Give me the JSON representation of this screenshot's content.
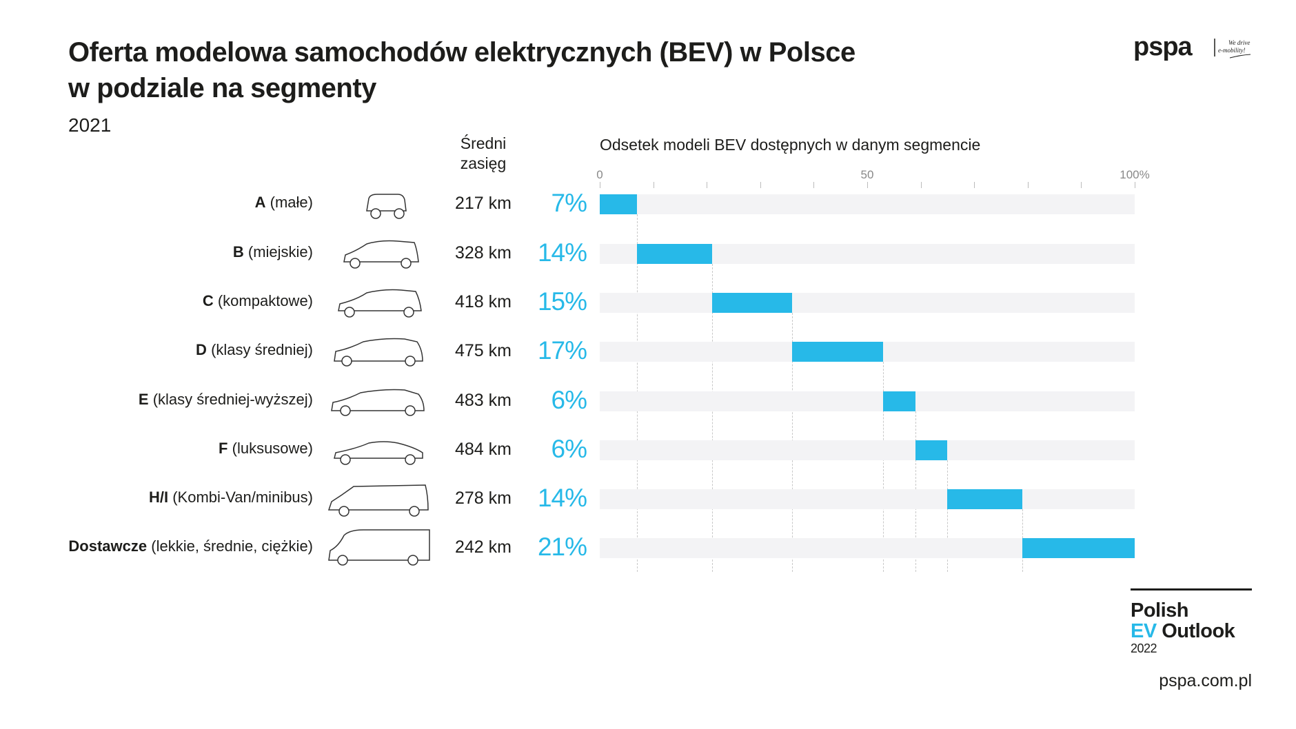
{
  "header": {
    "title_line1": "Oferta modelowa samochodów elektrycznych (BEV) w Polsce",
    "title_line2": "w podziale na segmenty",
    "year": "2021",
    "logo_text": "pspa",
    "logo_tagline": "We drive e-mobility!"
  },
  "columns": {
    "range_header_line1": "Średni",
    "range_header_line2": "zasięg"
  },
  "footer": {
    "brand_line1": "Polish",
    "brand_ev": "EV",
    "brand_outlook": "Outlook",
    "brand_year": "2022",
    "website": "pspa.com.pl"
  },
  "colors": {
    "accent": "#27b9e8",
    "track": "#f3f3f5",
    "text": "#1d1d1b"
  },
  "chart_data": {
    "type": "bar",
    "subtype": "stacked-cumulative-horizontal",
    "title": "Odsetek modeli BEV dostępnych w danym segmencie",
    "xlim": [
      0,
      100
    ],
    "tick_labels": [
      {
        "value": 0,
        "label": "0"
      },
      {
        "value": 50,
        "label": "50"
      },
      {
        "value": 100,
        "label": "100%"
      }
    ],
    "tick_marks": [
      0,
      10,
      20,
      30,
      40,
      50,
      60,
      70,
      80,
      90,
      100
    ],
    "categories": [
      {
        "segment": "A",
        "desc": "(małe)",
        "icon": "city-car-icon",
        "range": "217 km",
        "value": 7,
        "label": "7%"
      },
      {
        "segment": "B",
        "desc": "(miejskie)",
        "icon": "hatchback-small-icon",
        "range": "328 km",
        "value": 14,
        "label": "14%"
      },
      {
        "segment": "C",
        "desc": "(kompaktowe)",
        "icon": "hatchback-compact-icon",
        "range": "418 km",
        "value": 15,
        "label": "15%"
      },
      {
        "segment": "D",
        "desc": "(klasy średniej)",
        "icon": "suv-icon",
        "range": "475 km",
        "value": 17,
        "label": "17%"
      },
      {
        "segment": "E",
        "desc": "(klasy średniej-wyższej)",
        "icon": "suv-large-icon",
        "range": "483 km",
        "value": 6,
        "label": "6%"
      },
      {
        "segment": "F",
        "desc": "(luksusowe)",
        "icon": "sedan-icon",
        "range": "484 km",
        "value": 6,
        "label": "6%"
      },
      {
        "segment": "H/I",
        "desc": "(Kombi-Van/minibus)",
        "icon": "minivan-icon",
        "range": "278 km",
        "value": 14,
        "label": "14%"
      },
      {
        "segment": "Dostawcze",
        "desc": "(lekkie, średnie, ciężkie)",
        "icon": "delivery-van-icon",
        "range": "242 km",
        "value": 21,
        "label": "21%"
      }
    ]
  }
}
